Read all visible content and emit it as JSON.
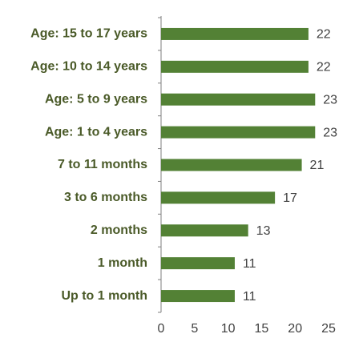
{
  "chart_data": {
    "type": "bar",
    "orientation": "horizontal",
    "categories": [
      "Age: 15 to 17 years",
      "Age: 10 to 14 years",
      "Age: 5 to 9 years",
      "Age: 1 to 4 years",
      "7 to 11 months",
      "3 to 6 months",
      "2 months",
      "1 month",
      "Up to 1 month"
    ],
    "values": [
      22,
      22,
      23,
      23,
      21,
      17,
      13,
      11,
      11
    ],
    "color": "#538135",
    "xlim": [
      0,
      25
    ],
    "xticks": [
      0,
      5,
      10,
      15,
      20,
      25
    ],
    "grid": false
  }
}
